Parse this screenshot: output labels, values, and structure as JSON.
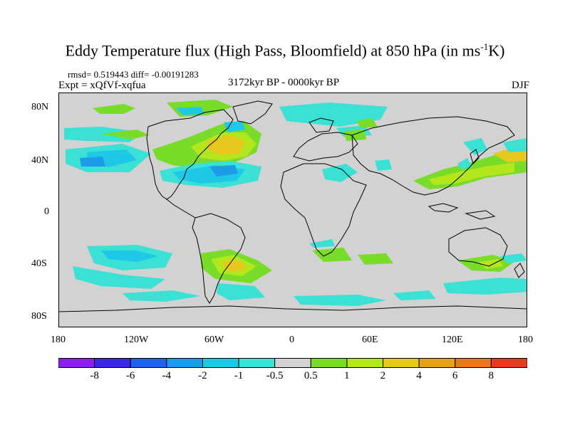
{
  "title": {
    "main": "Eddy Temperature flux (High Pass, Bloomfield) at 850 hPa (in ms",
    "sup": "-1",
    "tail": "K)"
  },
  "stats": "rmsd= 0.519443 diff= -0.00191283",
  "expt": "Expt = xQfVf-xqfua",
  "period": "3172kyr BP - 0000kyr BP",
  "season": "DJF",
  "axes": {
    "y_ticks": [
      "80N",
      "40N",
      "0",
      "40S",
      "80S"
    ],
    "x_ticks": [
      "180",
      "120W",
      "60W",
      "0",
      "60E",
      "120E",
      "180"
    ]
  },
  "colorbar": {
    "labels": [
      "-8",
      "-6",
      "-4",
      "-2",
      "-1",
      "-0.5",
      "0.5",
      "1",
      "2",
      "4",
      "6",
      "8"
    ],
    "colors": [
      "#8c1ee8",
      "#3c28e0",
      "#1e64e6",
      "#1e9be6",
      "#1ec8e6",
      "#3ce1d6",
      "#d2d2d2",
      "#78dc28",
      "#b4e61e",
      "#e6c81e",
      "#e6a01e",
      "#e6781e",
      "#e63c1e"
    ]
  },
  "colors": {
    "background": "#d2d2d2",
    "coast": "#000000"
  }
}
